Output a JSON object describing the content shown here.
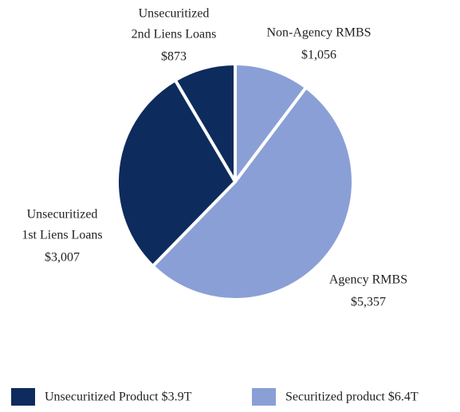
{
  "chart_data": {
    "type": "pie",
    "categories": [
      [
        "Non-Agency RMBS"
      ],
      [
        "Agency RMBS"
      ],
      [
        "Unsecuritized",
        "1st Liens Loans"
      ],
      [
        "Unsecuritized",
        "2nd Liens Loans"
      ]
    ],
    "values": [
      1056,
      5357,
      3007,
      873
    ],
    "value_labels": [
      "$1,056",
      "$5,357",
      "$3,007",
      "$873"
    ],
    "colors": [
      "#8a9fd6",
      "#8a9fd6",
      "#0d2b5c",
      "#0d2b5c"
    ],
    "legend": [
      {
        "label": "Unsecuritized Product $3.9T",
        "color": "#0d2b5c"
      },
      {
        "label": "Securitized product $6.4T",
        "color": "#8a9fd6"
      }
    ]
  }
}
